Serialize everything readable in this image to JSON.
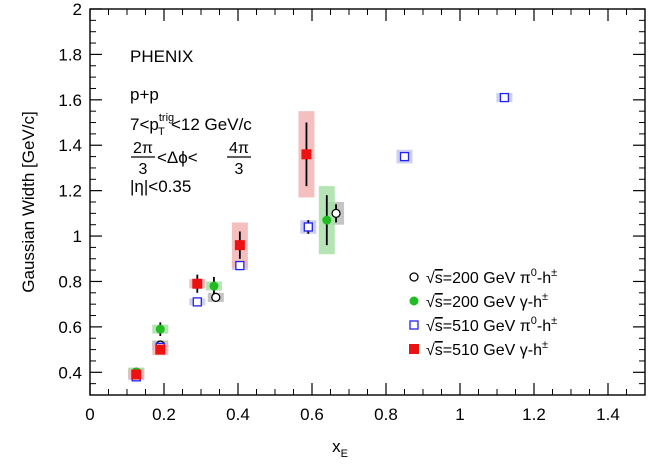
{
  "chart_data": {
    "type": "scatter",
    "title": "",
    "xlabel": "x",
    "xlabel_sub": "E",
    "ylabel": "Gaussian Width [GeV/c]",
    "xlim": [
      0,
      1.5
    ],
    "ylim": [
      0.3,
      2.0
    ],
    "x_ticks": [
      0,
      0.2,
      0.4,
      0.6,
      0.8,
      1,
      1.2,
      1.4
    ],
    "x_tick_labels": [
      "0",
      "0.2",
      "0.4",
      "0.6",
      "0.8",
      "1",
      "1.2",
      "1.4"
    ],
    "y_ticks": [
      0.4,
      0.6,
      0.8,
      1.0,
      1.2,
      1.4,
      1.6,
      1.8,
      2.0
    ],
    "y_tick_labels": [
      "0.4",
      "0.6",
      "0.8",
      "1",
      "1.2",
      "1.4",
      "1.6",
      "1.8",
      "2"
    ],
    "grid": false,
    "legend_position": "bottom-right",
    "annotations": {
      "experiment": "PHENIX",
      "system": "p+p",
      "pt_cut": {
        "pre": "7<p",
        "sup": "trig",
        "sub": "T",
        "post": "<12 GeV/c"
      },
      "dphi_cut": {
        "left_num": "2π",
        "left_den": "3",
        "middle": "<Δϕ<",
        "right_num": "4π",
        "right_den": "3"
      },
      "eta_cut": "|η|<0.35"
    },
    "series": [
      {
        "name": "√s=200 GeV π⁰-h±",
        "legend": {
          "root": "√",
          "s": "s",
          "rest": "=200 GeV π",
          "sup1": "0",
          "mid": "-h",
          "sup2": "±"
        },
        "marker": "open-circle",
        "color": "#000000",
        "sys_color": "#bbbbbb",
        "points": [
          {
            "x": 0.125,
            "y": 0.4,
            "stat": 0.015,
            "sys": 0.02
          },
          {
            "x": 0.19,
            "y": 0.52,
            "stat": 0.015,
            "sys": 0.02
          },
          {
            "x": 0.34,
            "y": 0.73,
            "stat": 0.02,
            "sys": 0.02
          },
          {
            "x": 0.665,
            "y": 1.1,
            "stat": 0.04,
            "sys": 0.05
          }
        ]
      },
      {
        "name": "√s=200 GeV γ-h±",
        "legend": {
          "root": "√",
          "s": "s",
          "rest": "=200 GeV γ",
          "sup1": "",
          "mid": "-h",
          "sup2": "±"
        },
        "marker": "filled-circle",
        "color": "#22bb22",
        "sys_color": "#a8e0a8",
        "points": [
          {
            "x": 0.125,
            "y": 0.4,
            "stat": 0.015,
            "sys": 0.02
          },
          {
            "x": 0.19,
            "y": 0.59,
            "stat": 0.03,
            "sys": 0.02
          },
          {
            "x": 0.335,
            "y": 0.78,
            "stat": 0.04,
            "sys": 0.02
          },
          {
            "x": 0.64,
            "y": 1.07,
            "stat": 0.11,
            "sys": 0.15
          }
        ]
      },
      {
        "name": "√s=510 GeV π⁰-h±",
        "legend": {
          "root": "√",
          "s": "s",
          "rest": "=510 GeV π",
          "sup1": "0",
          "mid": "-h",
          "sup2": "±"
        },
        "marker": "open-square",
        "color": "#2222ee",
        "sys_color": "#c4c8ee",
        "points": [
          {
            "x": 0.125,
            "y": 0.38,
            "stat": 0.01,
            "sys": 0.015
          },
          {
            "x": 0.19,
            "y": 0.51,
            "stat": 0.01,
            "sys": 0.015
          },
          {
            "x": 0.29,
            "y": 0.71,
            "stat": 0.015,
            "sys": 0.015
          },
          {
            "x": 0.405,
            "y": 0.87,
            "stat": 0.02,
            "sys": 0.02
          },
          {
            "x": 0.59,
            "y": 1.04,
            "stat": 0.03,
            "sys": 0.03
          },
          {
            "x": 0.85,
            "y": 1.35,
            "stat": 0.02,
            "sys": 0.03
          },
          {
            "x": 1.12,
            "y": 1.61,
            "stat": 0.02,
            "sys": 0.02
          }
        ]
      },
      {
        "name": "√s=510 GeV γ-h±",
        "legend": {
          "root": "√",
          "s": "s",
          "rest": "=510 GeV γ",
          "sup1": "",
          "mid": "-h",
          "sup2": "±"
        },
        "marker": "filled-square",
        "color": "#ee1111",
        "sys_color": "#f2b4b4",
        "points": [
          {
            "x": 0.125,
            "y": 0.39,
            "stat": 0.015,
            "sys": 0.02
          },
          {
            "x": 0.19,
            "y": 0.5,
            "stat": 0.02,
            "sys": 0.025
          },
          {
            "x": 0.29,
            "y": 0.79,
            "stat": 0.04,
            "sys": 0.02
          },
          {
            "x": 0.405,
            "y": 0.96,
            "stat": 0.06,
            "sys": 0.1
          },
          {
            "x": 0.585,
            "y": 1.36,
            "stat": 0.14,
            "sys": 0.19
          }
        ]
      }
    ]
  }
}
